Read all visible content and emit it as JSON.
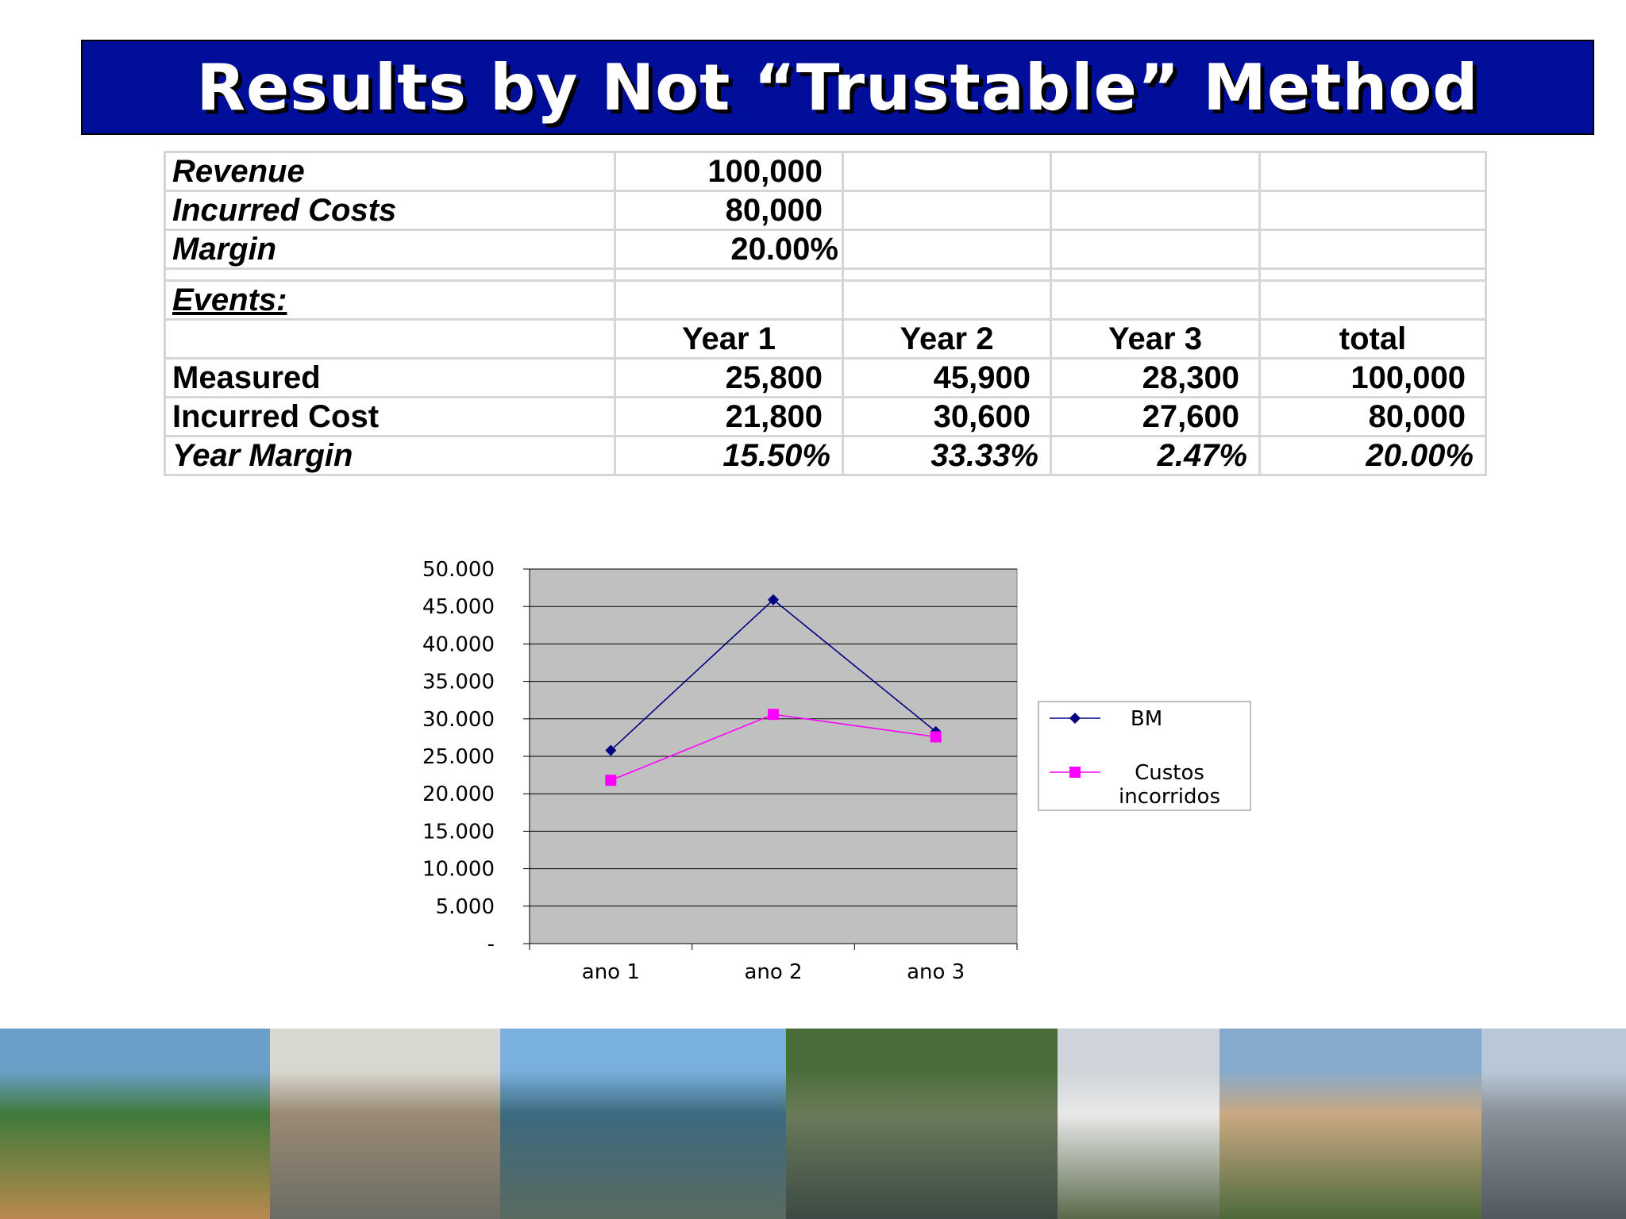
{
  "title": "Results by Not “Trustable” Method",
  "table": {
    "top_rows": [
      {
        "label": "Revenue",
        "value": "100,000"
      },
      {
        "label": "Incurred Costs",
        "value": "80,000"
      },
      {
        "label": "Margin",
        "value": "20.00%"
      }
    ],
    "events_label": "Events:",
    "headers": [
      "Year 1",
      "Year 2",
      "Year 3",
      "total"
    ],
    "rows": [
      {
        "label": "Measured",
        "values": [
          "25,800",
          "45,900",
          "28,300",
          "100,000"
        ]
      },
      {
        "label": "Incurred Cost",
        "values": [
          "21,800",
          "30,600",
          "27,600",
          "80,000"
        ]
      },
      {
        "label": "Year Margin",
        "values": [
          "15.50%",
          "33.33%",
          "2.47%",
          "20.00%"
        ]
      }
    ]
  },
  "chart_data": {
    "type": "line",
    "categories": [
      "ano 1",
      "ano 2",
      "ano 3"
    ],
    "series": [
      {
        "name": "BM",
        "values": [
          25800,
          45900,
          28300
        ],
        "color": "#000080",
        "marker": "diamond"
      },
      {
        "name": "Custos incorridos",
        "values": [
          21800,
          30600,
          27600
        ],
        "color": "#ff00ff",
        "marker": "square"
      }
    ],
    "yticks": [
      "50.000",
      "45.000",
      "40.000",
      "35.000",
      "30.000",
      "25.000",
      "20.000",
      "15.000",
      "10.000",
      "5.000",
      "-"
    ],
    "ylim": [
      0,
      50000
    ],
    "grid": true,
    "plot_background": "#c0c0c0",
    "legend": "right",
    "legend_lines": [
      [
        "BM"
      ],
      [
        "Custos",
        "incorridos"
      ]
    ]
  },
  "photos": [
    {
      "name": "beach-resort-photo",
      "colors": [
        "#6aa0c8",
        "#3f7a3a",
        "#b8894e"
      ]
    },
    {
      "name": "industrial-plant-photo",
      "colors": [
        "#d8d8d0",
        "#9a8a74",
        "#6c6c64"
      ]
    },
    {
      "name": "cable-stayed-bridge-photo",
      "colors": [
        "#7ab0dc",
        "#3c6a80",
        "#5a6a60"
      ]
    },
    {
      "name": "dam-photo",
      "colors": [
        "#4a6e3a",
        "#6a7a5a",
        "#3c4a44"
      ]
    },
    {
      "name": "skyscraper-photo",
      "colors": [
        "#cfd4da",
        "#e8e8e8",
        "#5a6a4a"
      ]
    },
    {
      "name": "hydro-dam-river-photo",
      "colors": [
        "#86aacb",
        "#c9a882",
        "#4e6a3a"
      ]
    },
    {
      "name": "suspension-bridge-photo",
      "colors": [
        "#b8c8d8",
        "#8a9098",
        "#505860"
      ]
    }
  ]
}
